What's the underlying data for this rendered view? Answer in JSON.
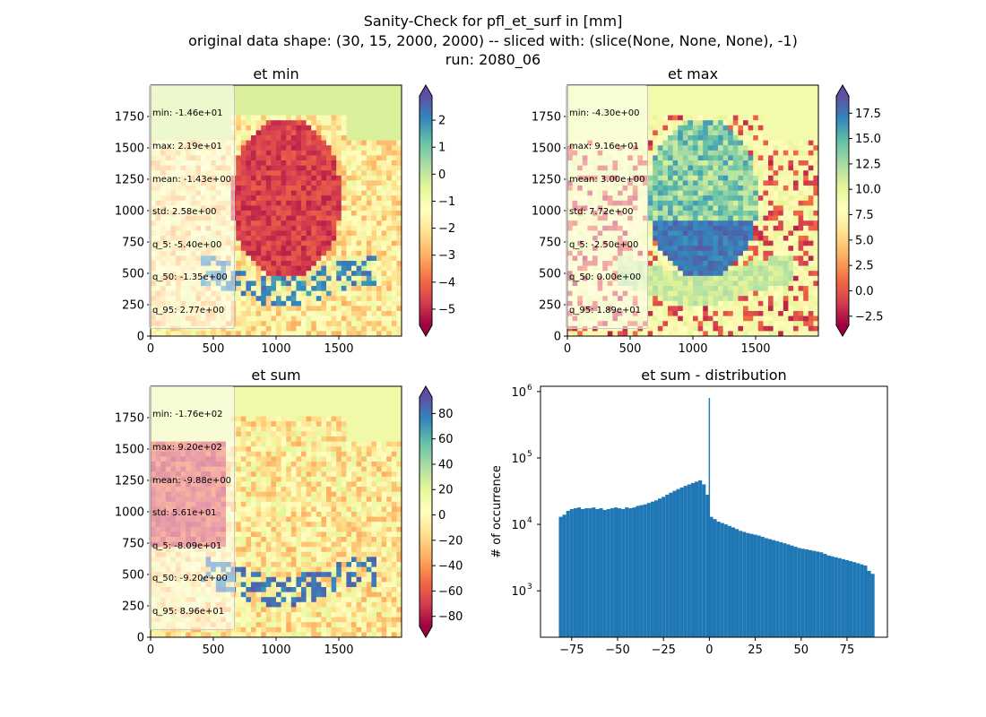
{
  "figure": {
    "title_lines": [
      "Sanity-Check for pfl_et_surf in [mm]",
      "original data shape: (30, 15, 2000, 2000) -- sliced with: (slice(None, None, None), -1)",
      "run: 2080_06"
    ]
  },
  "panels": {
    "et_min": {
      "title": "et min",
      "stats": [
        "min: -1.46e+01",
        "max: 2.19e+01",
        "mean: -1.43e+00",
        "std: 2.58e+00",
        "q_5: -5.40e+00",
        "q_50: -1.35e+00",
        "q_95: 2.77e+00"
      ],
      "x_ticks": [
        "0",
        "500",
        "1000",
        "1500"
      ],
      "y_ticks": [
        "0",
        "250",
        "500",
        "750",
        "1000",
        "1250",
        "1500",
        "1750"
      ],
      "colorbar_ticks": [
        "2",
        "1",
        "0",
        "−1",
        "−2",
        "−3",
        "−4",
        "−5"
      ]
    },
    "et_max": {
      "title": "et max",
      "stats": [
        "min: -4.30e+00",
        "max: 9.16e+01",
        "mean: 3.00e+00",
        "std: 7.72e+00",
        "q_5: -2.50e+00",
        "q_50: 0.00e+00",
        "q_95: 1.89e+01"
      ],
      "x_ticks": [
        "0",
        "500",
        "1000",
        "1500"
      ],
      "y_ticks": [
        "0",
        "250",
        "500",
        "750",
        "1000",
        "1250",
        "1500",
        "1750"
      ],
      "colorbar_ticks": [
        "17.5",
        "15.0",
        "12.5",
        "10.0",
        "7.5",
        "5.0",
        "2.5",
        "0.0",
        "−2.5"
      ]
    },
    "et_sum": {
      "title": "et sum",
      "stats": [
        "min: -1.76e+02",
        "max: 9.20e+02",
        "mean: -9.88e+00",
        "std: 5.61e+01",
        "q_5: -8.09e+01",
        "q_50: -9.20e+00",
        "q_95: 8.96e+01"
      ],
      "x_ticks": [
        "0",
        "500",
        "1000",
        "1500"
      ],
      "y_ticks": [
        "0",
        "250",
        "500",
        "750",
        "1000",
        "1250",
        "1500",
        "1750"
      ],
      "colorbar_ticks": [
        "80",
        "60",
        "40",
        "20",
        "0",
        "−20",
        "−40",
        "−60",
        "−80"
      ]
    },
    "hist": {
      "title": "et sum - distribution",
      "ylabel": "# of occurrence",
      "x_ticks": [
        "−75",
        "−50",
        "−25",
        "0",
        "25",
        "50",
        "75"
      ],
      "y_ticks": [
        "10",
        "10",
        "10",
        "10"
      ],
      "y_tick_exps": [
        "3",
        "4",
        "5",
        "6"
      ]
    }
  },
  "colors": {
    "hist_bar": "#1f77b4",
    "colormap": [
      "#9e0142",
      "#d53e4f",
      "#f46d43",
      "#fdae61",
      "#fee08b",
      "#ffffbf",
      "#e6f598",
      "#abdda4",
      "#66c2a5",
      "#3288bd",
      "#5e4fa2"
    ]
  },
  "chart_data": [
    {
      "type": "heatmap",
      "title": "et min",
      "colormap": "Spectral",
      "x_range": [
        0,
        2000
      ],
      "y_range": [
        0,
        2000
      ],
      "color_range": [
        -5.4,
        2.77
      ],
      "colorbar_ticks": [
        2,
        1,
        0,
        -1,
        -2,
        -3,
        -4,
        -5
      ]
    },
    {
      "type": "heatmap",
      "title": "et max",
      "colormap": "Spectral",
      "x_range": [
        0,
        2000
      ],
      "y_range": [
        0,
        2000
      ],
      "color_range": [
        -2.5,
        18.9
      ],
      "colorbar_ticks": [
        17.5,
        15.0,
        12.5,
        10.0,
        7.5,
        5.0,
        2.5,
        0.0,
        -2.5
      ]
    },
    {
      "type": "heatmap",
      "title": "et sum",
      "colormap": "Spectral",
      "x_range": [
        0,
        2000
      ],
      "y_range": [
        0,
        2000
      ],
      "color_range": [
        -80.9,
        89.6
      ],
      "colorbar_ticks": [
        80,
        60,
        40,
        20,
        0,
        -20,
        -40,
        -60,
        -80
      ]
    },
    {
      "type": "bar",
      "title": "et sum - distribution",
      "xlabel": "",
      "ylabel": "# of occurrence",
      "y_scale": "log",
      "xlim": [
        -92,
        97
      ],
      "ylim": [
        200,
        1200000
      ],
      "x_ticks": [
        -75,
        -50,
        -25,
        0,
        25,
        50,
        75
      ],
      "series": [
        {
          "x": [
            -81,
            -79,
            -77,
            -75,
            -73,
            -71,
            -69,
            -67,
            -65,
            -63,
            -61,
            -59,
            -57,
            -55,
            -53,
            -51,
            -49,
            -47,
            -45,
            -43,
            -41,
            -39,
            -37,
            -35,
            -33,
            -31,
            -29,
            -27,
            -25,
            -23,
            -21,
            -19,
            -17,
            -15,
            -13,
            -11,
            -9,
            -7,
            -5,
            -3,
            -1,
            0,
            1,
            3,
            5,
            7,
            9,
            11,
            13,
            15,
            17,
            19,
            21,
            23,
            25,
            27,
            29,
            31,
            33,
            35,
            37,
            39,
            41,
            43,
            45,
            47,
            49,
            51,
            53,
            55,
            57,
            59,
            61,
            63,
            65,
            67,
            69,
            71,
            73,
            75,
            77,
            79,
            81,
            83,
            85,
            87,
            89
          ],
          "values": [
            13000,
            14000,
            16000,
            17000,
            17500,
            18000,
            17000,
            17500,
            17500,
            18000,
            17000,
            17500,
            16500,
            17000,
            17500,
            18000,
            17500,
            17000,
            18000,
            17500,
            18000,
            19000,
            19500,
            20000,
            21000,
            22000,
            23000,
            24500,
            26000,
            28000,
            30000,
            32000,
            34000,
            36000,
            38000,
            40000,
            42000,
            44000,
            46000,
            40000,
            28000,
            800000,
            13000,
            12000,
            11000,
            10500,
            10000,
            9500,
            9000,
            8500,
            8000,
            7700,
            7400,
            7200,
            7000,
            6800,
            6500,
            6200,
            6000,
            5800,
            5600,
            5400,
            5200,
            5000,
            4800,
            4600,
            4400,
            4300,
            4200,
            4100,
            4000,
            3900,
            3800,
            3600,
            3400,
            3300,
            3200,
            3100,
            3000,
            2900,
            2800,
            2700,
            2600,
            2500,
            2400,
            2000,
            1800
          ]
        }
      ]
    }
  ]
}
